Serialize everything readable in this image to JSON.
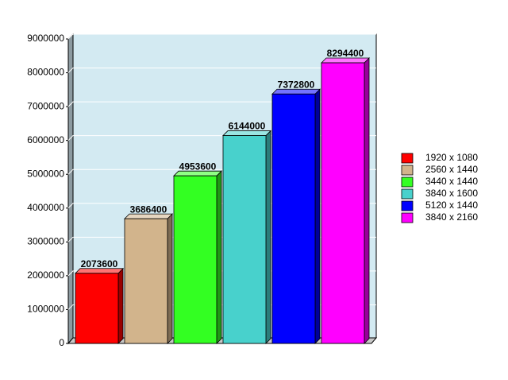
{
  "chart_data": {
    "type": "bar3d",
    "series": [
      {
        "name": "1920 x 1080",
        "color": "#ff0000",
        "values": [
          2073600
        ]
      },
      {
        "name": "2560 x 1440",
        "color": "#d2b48c",
        "values": [
          3686400
        ]
      },
      {
        "name": "3440 x 1440",
        "color": "#33ff22",
        "values": [
          4953600
        ]
      },
      {
        "name": "3840 x 1600",
        "color": "#48d1cc",
        "values": [
          6144000
        ]
      },
      {
        "name": "5120 x 1440",
        "color": "#0000ff",
        "values": [
          7372800
        ]
      },
      {
        "name": "3840 x 2160",
        "color": "#ff00ff",
        "values": [
          8294400
        ]
      }
    ],
    "ylim": [
      0,
      9000000
    ],
    "yticks": [
      0,
      1000000,
      2000000,
      3000000,
      4000000,
      5000000,
      6000000,
      7000000,
      8000000,
      9000000
    ],
    "grid": true,
    "legend": "right"
  }
}
